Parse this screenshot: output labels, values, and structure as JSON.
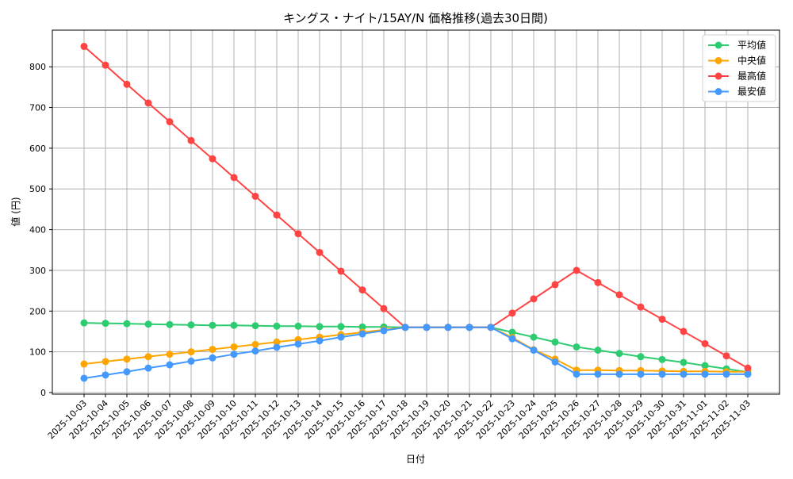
{
  "chart_data": {
    "type": "line",
    "title": "キングス・ナイト/15AY/N 価格推移(過去30日間)",
    "xlabel": "日付",
    "ylabel": "値 (円)",
    "ylim": [
      -4,
      890
    ],
    "yticks": [
      0,
      100,
      200,
      300,
      400,
      500,
      600,
      700,
      800
    ],
    "grid": true,
    "legend": "top-right",
    "categories": [
      "2025-10-03",
      "2025-10-04",
      "2025-10-05",
      "2025-10-06",
      "2025-10-07",
      "2025-10-08",
      "2025-10-09",
      "2025-10-10",
      "2025-10-11",
      "2025-10-12",
      "2025-10-13",
      "2025-10-14",
      "2025-10-15",
      "2025-10-16",
      "2025-10-17",
      "2025-10-18",
      "2025-10-19",
      "2025-10-20",
      "2025-10-21",
      "2025-10-22",
      "2025-10-23",
      "2025-10-24",
      "2025-10-25",
      "2025-10-26",
      "2025-10-27",
      "2025-10-28",
      "2025-10-29",
      "2025-10-30",
      "2025-10-31",
      "2025-11-01",
      "2025-11-02",
      "2025-11-03"
    ],
    "series": [
      {
        "name": "平均値",
        "color": "#2ecc71",
        "values": [
          171,
          170,
          169,
          168,
          167,
          166,
          165,
          165,
          164,
          163,
          163,
          162,
          162,
          161,
          161,
          160,
          160,
          160,
          160,
          160,
          148,
          136,
          124,
          112,
          104,
          96,
          88,
          81,
          74,
          66,
          58,
          50
        ]
      },
      {
        "name": "中央値",
        "color": "#ffa500",
        "values": [
          70,
          76,
          82,
          88,
          94,
          100,
          106,
          112,
          118,
          124,
          130,
          136,
          142,
          148,
          154,
          160,
          160,
          160,
          160,
          160,
          135,
          105,
          82,
          55,
          55,
          54,
          54,
          53,
          52,
          52,
          51,
          51
        ]
      },
      {
        "name": "最高値",
        "color": "#ff4444",
        "values": [
          850,
          804,
          757,
          711,
          665,
          619,
          574,
          528,
          482,
          436,
          390,
          344,
          298,
          252,
          206,
          160,
          160,
          160,
          160,
          160,
          195,
          230,
          265,
          300,
          270,
          240,
          210,
          180,
          150,
          120,
          90,
          60
        ]
      },
      {
        "name": "最安値",
        "color": "#4499ff",
        "values": [
          35,
          43,
          51,
          60,
          68,
          77,
          85,
          94,
          102,
          111,
          119,
          127,
          136,
          144,
          152,
          160,
          160,
          160,
          160,
          160,
          132,
          104,
          75,
          45,
          45,
          45,
          45,
          45,
          45,
          45,
          45,
          45
        ]
      }
    ]
  }
}
